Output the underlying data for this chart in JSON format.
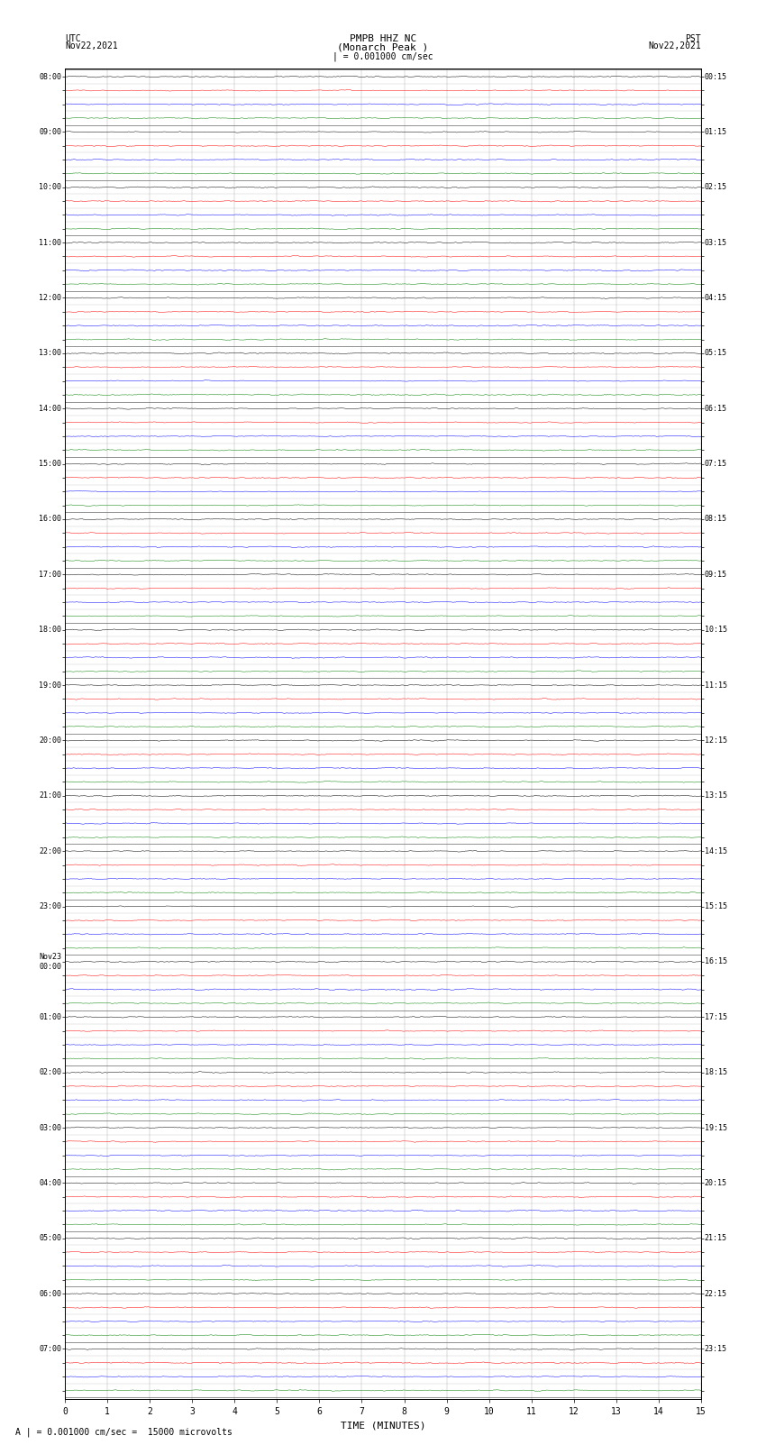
{
  "title_line1": "PMPB HHZ NC",
  "title_line2": "(Monarch Peak )",
  "scale_label": "| = 0.001000 cm/sec",
  "utc_label": "UTC\nNov22,2021",
  "pst_label": "PST\nNov22,2021",
  "bottom_label": "A | = 0.001000 cm/sec =  15000 microvolts",
  "xlabel": "TIME (MINUTES)",
  "left_times": [
    "08:00",
    "",
    "",
    "",
    "09:00",
    "",
    "",
    "",
    "10:00",
    "",
    "",
    "",
    "11:00",
    "",
    "",
    "",
    "12:00",
    "",
    "",
    "",
    "13:00",
    "",
    "",
    "",
    "14:00",
    "",
    "",
    "",
    "15:00",
    "",
    "",
    "",
    "16:00",
    "",
    "",
    "",
    "17:00",
    "",
    "",
    "",
    "18:00",
    "",
    "",
    "",
    "19:00",
    "",
    "",
    "",
    "20:00",
    "",
    "",
    "",
    "21:00",
    "",
    "",
    "",
    "22:00",
    "",
    "",
    "",
    "23:00",
    "",
    "",
    "",
    "Nov23\n00:00",
    "",
    "",
    "",
    "01:00",
    "",
    "",
    "",
    "02:00",
    "",
    "",
    "",
    "03:00",
    "",
    "",
    "",
    "04:00",
    "",
    "",
    "",
    "05:00",
    "",
    "",
    "",
    "06:00",
    "",
    "",
    "",
    "07:00",
    "",
    "",
    ""
  ],
  "right_times": [
    "00:15",
    "",
    "",
    "",
    "01:15",
    "",
    "",
    "",
    "02:15",
    "",
    "",
    "",
    "03:15",
    "",
    "",
    "",
    "04:15",
    "",
    "",
    "",
    "05:15",
    "",
    "",
    "",
    "06:15",
    "",
    "",
    "",
    "07:15",
    "",
    "",
    "",
    "08:15",
    "",
    "",
    "",
    "09:15",
    "",
    "",
    "",
    "10:15",
    "",
    "",
    "",
    "11:15",
    "",
    "",
    "",
    "12:15",
    "",
    "",
    "",
    "13:15",
    "",
    "",
    "",
    "14:15",
    "",
    "",
    "",
    "15:15",
    "",
    "",
    "",
    "16:15",
    "",
    "",
    "",
    "17:15",
    "",
    "",
    "",
    "18:15",
    "",
    "",
    "",
    "19:15",
    "",
    "",
    "",
    "20:15",
    "",
    "",
    "",
    "21:15",
    "",
    "",
    "",
    "22:15",
    "",
    "",
    "",
    "23:15",
    "",
    "",
    ""
  ],
  "row_colors": [
    "black",
    "red",
    "blue",
    "green"
  ],
  "n_rows": 96,
  "n_minutes": 15,
  "samples_per_row": 900,
  "noise_amplitude": 0.06,
  "background_color": "white",
  "grid_color": "#aaaaaa",
  "line_width": 0.35,
  "fig_width": 8.5,
  "fig_height": 16.13,
  "dpi": 100
}
